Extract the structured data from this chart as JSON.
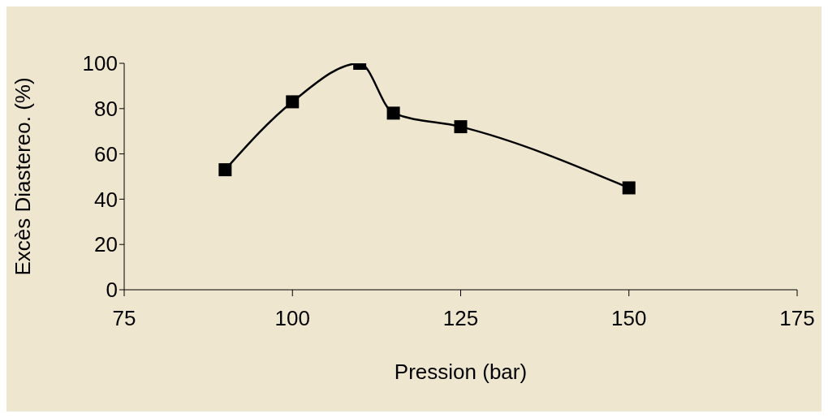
{
  "chart_data": {
    "type": "line",
    "xlabel": "Pression (bar)",
    "ylabel": "Excès Diastereo. (%)",
    "x": [
      90,
      100,
      110,
      115,
      125,
      150
    ],
    "series": [
      {
        "color": "#000000",
        "values": [
          53,
          83,
          100,
          78,
          72,
          45
        ]
      }
    ],
    "xlim": [
      75,
      175
    ],
    "xticks": [
      75,
      100,
      125,
      150,
      175
    ],
    "ylim": [
      0,
      100
    ],
    "yticks": [
      0,
      20,
      40,
      60,
      80,
      100
    ],
    "grid": false,
    "legend": false,
    "marker": "square",
    "line_style": "solid"
  }
}
